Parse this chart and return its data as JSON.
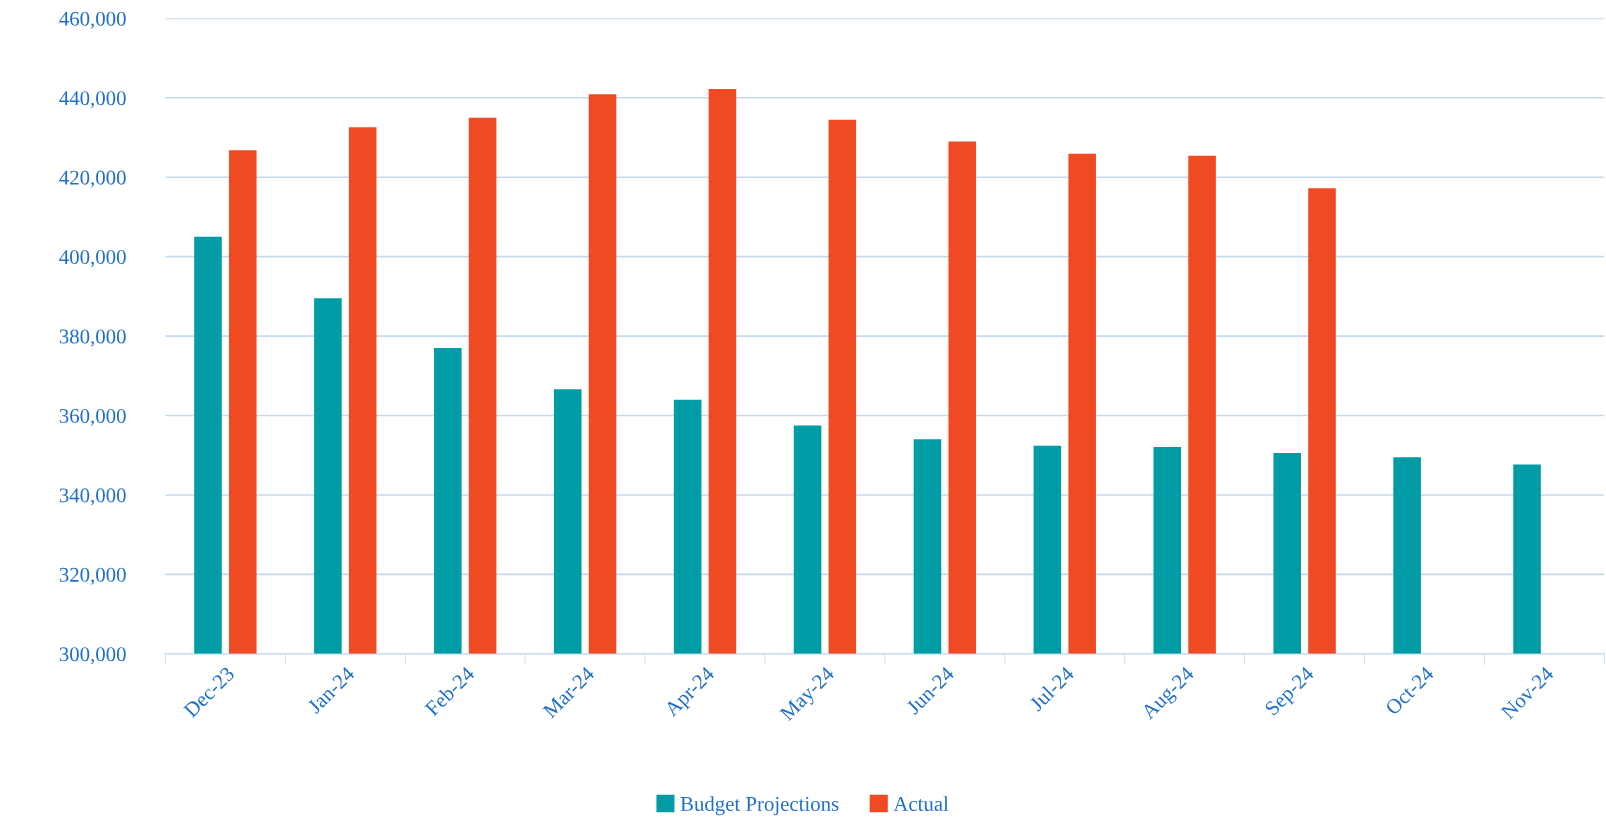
{
  "chart_data": {
    "type": "bar",
    "categories": [
      "Dec-23",
      "Jan-24",
      "Feb-24",
      "Mar-24",
      "Apr-24",
      "May-24",
      "Jun-24",
      "Jul-24",
      "Aug-24",
      "Sep-24",
      "Oct-24",
      "Nov-24"
    ],
    "series": [
      {
        "name": "Budget Projections",
        "color": "#009ca6",
        "values": [
          405000,
          389500,
          377000,
          366600,
          364000,
          357500,
          354000,
          352400,
          352100,
          350600,
          349500,
          347700
        ]
      },
      {
        "name": "Actual",
        "color": "#f04a23",
        "values": [
          426800,
          432600,
          435000,
          440900,
          442200,
          434500,
          429000,
          425900,
          425400,
          417200,
          null,
          null
        ]
      }
    ],
    "ylim": [
      300000,
      460000
    ],
    "yticks": [
      {
        "value": 300000,
        "label": "300,000"
      },
      {
        "value": 320000,
        "label": "320,000"
      },
      {
        "value": 340000,
        "label": "340,000"
      },
      {
        "value": 360000,
        "label": "360,000"
      },
      {
        "value": 380000,
        "label": "380,000"
      },
      {
        "value": 400000,
        "label": "400,000"
      },
      {
        "value": 420000,
        "label": "420,000"
      },
      {
        "value": 440000,
        "label": "440,000"
      },
      {
        "value": 460000,
        "label": "460,000"
      }
    ],
    "grid": "y",
    "legend": "bottom"
  }
}
